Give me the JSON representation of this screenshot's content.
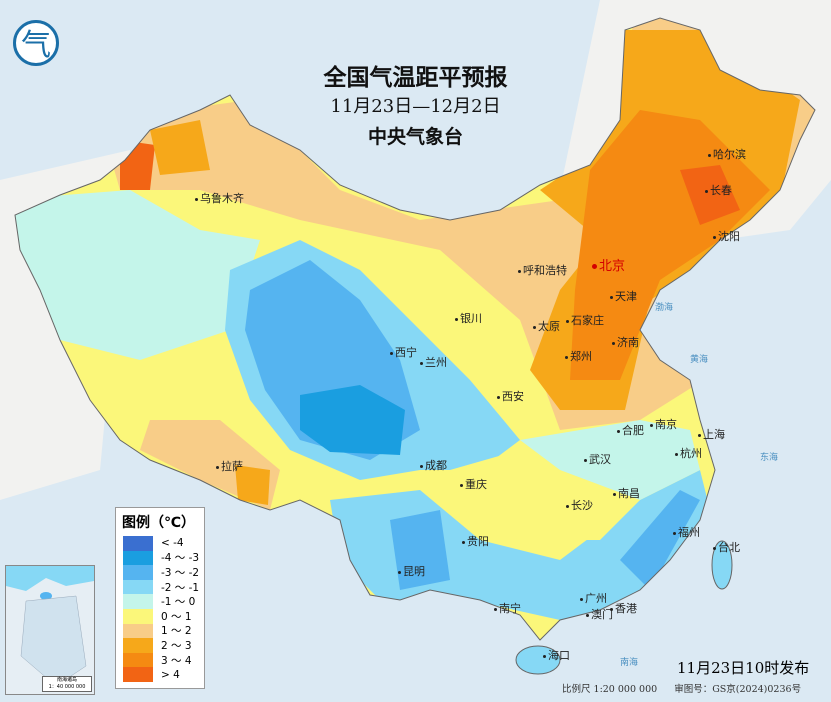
{
  "header": {
    "title": "全国气温距平预报",
    "date_range": "11月23日—12月2日",
    "issuer": "中央气象台"
  },
  "logo": {
    "icon": "cma-logo",
    "lettering": "气"
  },
  "legend": {
    "title": "图例（℃）",
    "items": [
      {
        "label": "< -4",
        "color": "#3a6fd0"
      },
      {
        "label": "-4 ～ -3",
        "color": "#1a9ee0"
      },
      {
        "label": "-3 ～ -2",
        "color": "#55b4f0"
      },
      {
        "label": "-2 ～ -1",
        "color": "#86d8f5"
      },
      {
        "label": "-1 ～ 0",
        "color": "#c4f5ea"
      },
      {
        "label": "0 ～ 1",
        "color": "#fbf77a"
      },
      {
        "label": "1 ～ 2",
        "color": "#f8cd88"
      },
      {
        "label": "2 ～ 3",
        "color": "#f6a81a"
      },
      {
        "label": "3 ～ 4",
        "color": "#f58a12"
      },
      {
        "label": "> 4",
        "color": "#f26414"
      }
    ]
  },
  "cities": {
    "beijing": "北京",
    "urumqi": "乌鲁木齐",
    "lhasa": "拉萨",
    "xining": "西宁",
    "lanzhou": "兰州",
    "yinchuan": "银川",
    "hohhot": "呼和浩特",
    "tianjin": "天津",
    "shijiazhuang": "石家庄",
    "taiyuan": "太原",
    "jinan": "济南",
    "zhengzhou": "郑州",
    "xian": "西安",
    "chengdu": "成都",
    "chongqing": "重庆",
    "guiyang": "贵阳",
    "kunming": "昆明",
    "nanning": "南宁",
    "guangzhou": "广州",
    "macau": "澳门",
    "hongkong": "香港",
    "haikou": "海口",
    "changsha": "长沙",
    "wuhan": "武汉",
    "nanchang": "南昌",
    "fuzhou": "福州",
    "taipei": "台北",
    "hangzhou": "杭州",
    "shanghai": "上海",
    "nanjing": "南京",
    "hefei": "合肥",
    "shenyang": "沈阳",
    "changchun": "长春",
    "harbin": "哈尔滨"
  },
  "seas": {
    "bohai": "渤海",
    "yellow": "黄海",
    "east": "东海",
    "south": "南海"
  },
  "inset": {
    "caption": "南海诸岛",
    "scale": "1：40 000 000"
  },
  "footer": {
    "published": "11月23日10时发布",
    "scale": "比例尺 1:20 000 000",
    "map_no": "审图号：GS京(2024)0236号"
  }
}
